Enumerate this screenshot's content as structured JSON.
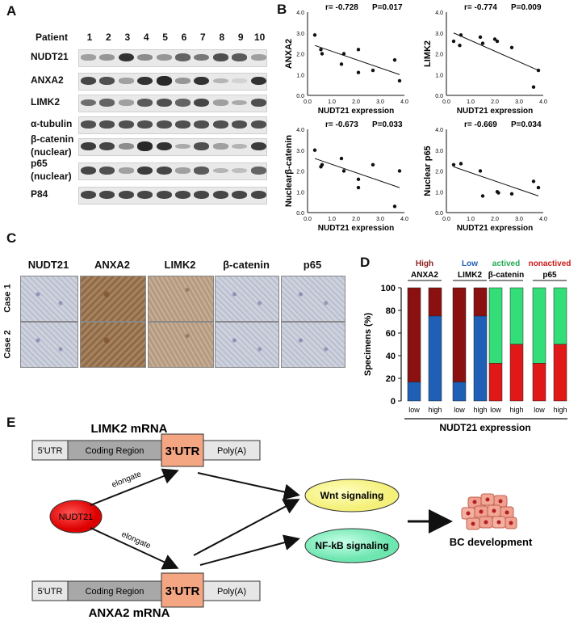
{
  "panels": {
    "A": "A",
    "B": "B",
    "C": "C",
    "D": "D",
    "E": "E"
  },
  "panelA": {
    "patient_label": "Patient",
    "lanes": [
      "1",
      "2",
      "3",
      "4",
      "5",
      "6",
      "7",
      "8",
      "9",
      "10"
    ],
    "blots": [
      {
        "label": "NUDT21",
        "intensities": [
          0.3,
          0.35,
          0.85,
          0.4,
          0.35,
          0.6,
          0.5,
          0.7,
          0.65,
          0.3
        ]
      },
      {
        "label": "ANXA2",
        "intensities": [
          0.75,
          0.7,
          0.3,
          0.85,
          0.9,
          0.35,
          0.85,
          0.2,
          0.05,
          0.85
        ]
      },
      {
        "label": "LIMK2",
        "intensities": [
          0.55,
          0.6,
          0.3,
          0.65,
          0.7,
          0.6,
          0.75,
          0.3,
          0.25,
          0.7
        ]
      },
      {
        "label": "α-tubulin",
        "intensities": [
          0.7,
          0.7,
          0.7,
          0.7,
          0.7,
          0.7,
          0.7,
          0.7,
          0.7,
          0.7
        ]
      },
      {
        "label": "β-catenin",
        "label2": "(nuclear)",
        "intensities": [
          0.8,
          0.75,
          0.4,
          0.9,
          0.85,
          0.25,
          0.7,
          0.3,
          0.2,
          0.8
        ]
      },
      {
        "label": "p65",
        "label2": "(nuclear)",
        "intensities": [
          0.75,
          0.7,
          0.3,
          0.8,
          0.75,
          0.3,
          0.65,
          0.2,
          0.15,
          0.6
        ]
      },
      {
        "label": "P84",
        "intensities": [
          0.75,
          0.75,
          0.75,
          0.75,
          0.75,
          0.75,
          0.75,
          0.75,
          0.75,
          0.75
        ]
      }
    ]
  },
  "panelB": {
    "xlabel": "NUDT21 expression",
    "plots": [
      {
        "ylabel": "ANXA2",
        "stats": "r= -0.728",
        "p": "P=0.017",
        "ticks": [
          "0.0",
          "1.0",
          "2.0",
          "3.0",
          "4.0"
        ],
        "points": [
          [
            0.3,
            2.9
          ],
          [
            0.6,
            2.0
          ],
          [
            0.55,
            2.2
          ],
          [
            1.4,
            1.5
          ],
          [
            1.5,
            2.0
          ],
          [
            2.1,
            2.2
          ],
          [
            2.1,
            1.1
          ],
          [
            2.7,
            1.2
          ],
          [
            3.6,
            1.7
          ],
          [
            3.8,
            0.7
          ]
        ],
        "fit": [
          [
            0.3,
            2.4
          ],
          [
            3.8,
            1.0
          ]
        ]
      },
      {
        "ylabel": "LIMK2",
        "stats": "r= -0.774",
        "p": "P=0.009",
        "ticks": [
          "0.0",
          "1.0",
          "2.0",
          "3.0",
          "4.0"
        ],
        "points": [
          [
            0.3,
            2.6
          ],
          [
            0.6,
            2.9
          ],
          [
            0.55,
            2.4
          ],
          [
            1.4,
            2.8
          ],
          [
            1.5,
            2.5
          ],
          [
            2.0,
            2.7
          ],
          [
            2.1,
            2.6
          ],
          [
            2.7,
            2.3
          ],
          [
            3.6,
            0.4
          ],
          [
            3.8,
            1.2
          ]
        ],
        "fit": [
          [
            0.3,
            3.0
          ],
          [
            3.8,
            1.2
          ]
        ]
      },
      {
        "ylabel": "Nuclearβ-catenin",
        "stats": "r= -0.673",
        "p": "P=0.033",
        "ticks": [
          "0.0",
          "1.0",
          "2.0",
          "3.0",
          "4.0"
        ],
        "points": [
          [
            0.3,
            3.0
          ],
          [
            0.6,
            2.3
          ],
          [
            0.55,
            2.2
          ],
          [
            1.4,
            2.6
          ],
          [
            1.5,
            2.0
          ],
          [
            2.1,
            1.6
          ],
          [
            2.1,
            1.2
          ],
          [
            2.7,
            2.3
          ],
          [
            3.6,
            0.3
          ],
          [
            3.8,
            2.0
          ]
        ],
        "fit": [
          [
            0.3,
            2.6
          ],
          [
            3.8,
            1.2
          ]
        ]
      },
      {
        "ylabel": "Nuclear p65",
        "stats": "r= -0.669",
        "p": "P=0.034",
        "ticks": [
          "0.0",
          "1.0",
          "2.0",
          "3.0",
          "4.0"
        ],
        "points": [
          [
            0.3,
            2.3
          ],
          [
            0.6,
            2.35
          ],
          [
            1.4,
            2.0
          ],
          [
            1.5,
            0.8
          ],
          [
            2.1,
            1.0
          ],
          [
            2.15,
            0.95
          ],
          [
            2.7,
            0.9
          ],
          [
            3.6,
            1.5
          ],
          [
            3.8,
            1.2
          ]
        ],
        "fit": [
          [
            0.3,
            2.2
          ],
          [
            3.8,
            0.8
          ]
        ]
      }
    ]
  },
  "panelC": {
    "columns": [
      "NUDT21",
      "ANXA2",
      "LIMK2",
      "β-catenin",
      "p65"
    ],
    "rows": [
      "Case 1",
      "Case 2"
    ],
    "tones": [
      [
        "blue",
        "brown",
        "tan",
        "blue",
        "blue"
      ],
      [
        "blue",
        "brown",
        "tan",
        "blue",
        "blue"
      ]
    ]
  },
  "panelD": {
    "ylabel": "Specimens (%)",
    "xlabel": "NUDT21 expression",
    "yticks": [
      "0",
      "20",
      "40",
      "60",
      "80",
      "100"
    ],
    "groups": [
      {
        "top": "High",
        "bottom": "ANXA2",
        "top_color": "#8b1a1a",
        "bars": [
          {
            "x": "low",
            "lower": 16.7,
            "lower_color": "#1f5fb5",
            "upper_color": "#8b1010"
          },
          {
            "x": "high",
            "lower": 75,
            "lower_color": "#1f5fb5",
            "upper_color": "#8b1010"
          }
        ]
      },
      {
        "top": "Low",
        "bottom": "LIMK2",
        "top_color": "#1f5fb5",
        "bars": [
          {
            "x": "low",
            "lower": 16.7,
            "lower_color": "#1f5fb5",
            "upper_color": "#8b1010"
          },
          {
            "x": "high",
            "lower": 75,
            "lower_color": "#1f5fb5",
            "upper_color": "#8b1010"
          }
        ]
      },
      {
        "top": "actived",
        "bottom": "β-catenin",
        "top_color": "#22aa55",
        "bars": [
          {
            "x": "low",
            "lower": 33.3,
            "lower_color": "#e01818",
            "upper_color": "#33dd77"
          },
          {
            "x": "high",
            "lower": 50,
            "lower_color": "#e01818",
            "upper_color": "#33dd77"
          }
        ]
      },
      {
        "top": "nonactived",
        "bottom": "p65",
        "top_color": "#cc1a1a",
        "bars": [
          {
            "x": "low",
            "lower": 33.3,
            "lower_color": "#e01818",
            "upper_color": "#33dd77"
          },
          {
            "x": "high",
            "lower": 50,
            "lower_color": "#e01818",
            "upper_color": "#33dd77"
          }
        ]
      }
    ]
  },
  "panelE": {
    "limk2_title": "LIMK2 mRNA",
    "anxa2_title": "ANXA2 mRNA",
    "utr5": "5'UTR",
    "coding": "Coding Region",
    "utr3": "3'UTR",
    "polya": "Poly(A)",
    "nudt21": "NUDT21",
    "elongate": "elongate",
    "wnt": "Wnt signaling",
    "nfkb": "NF-kB signaling",
    "bc": "BC development"
  }
}
